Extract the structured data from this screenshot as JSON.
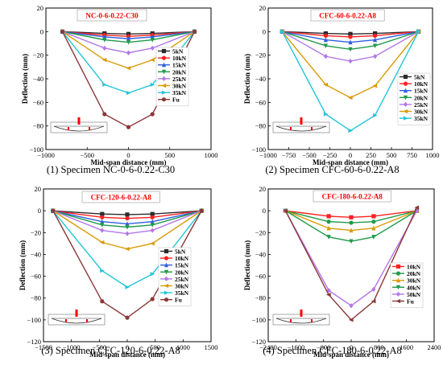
{
  "colors": {
    "5kN": "#2b2b2b",
    "10kN": "#ff2020",
    "15kN": "#2f5fe0",
    "20kN": "#1f9a4a",
    "25kN": "#b277e8",
    "30kN": "#d99a06",
    "35kN": "#22c6d8",
    "Fu": "#8b3838",
    "40kN": "#1f9a4a",
    "50kN": "#b277e8",
    "title_box": "#ff0000",
    "sketch_mark": "#ff0000"
  },
  "chart_data": [
    {
      "type": "line",
      "title": "NC-0-6-0.22-C30",
      "caption": "(1) Specimen NC-0-6-0.22-C30",
      "xlabel": "Mid-span distance (mm)",
      "ylabel": "Deflection (mm)",
      "xlim": [
        -1000,
        1000
      ],
      "ylim": [
        -100,
        20
      ],
      "xticks": [
        -1000,
        -500,
        0,
        500,
        1000
      ],
      "yticks": [
        -100,
        -80,
        -60,
        -40,
        -20,
        0,
        20
      ],
      "x": [
        -800,
        -290,
        0,
        290,
        800
      ],
      "legend_position": "right",
      "series": [
        {
          "name": "5kN",
          "values": [
            0,
            -1.5,
            -2,
            -1.5,
            0
          ]
        },
        {
          "name": "10kN",
          "values": [
            0,
            -3,
            -4,
            -3,
            0
          ]
        },
        {
          "name": "15kN",
          "values": [
            0,
            -4.5,
            -6,
            -4.5,
            0
          ]
        },
        {
          "name": "20kN",
          "values": [
            0,
            -7,
            -9,
            -7,
            0
          ]
        },
        {
          "name": "25kN",
          "values": [
            0,
            -14,
            -18,
            -14,
            0
          ]
        },
        {
          "name": "30kN",
          "values": [
            0,
            -24,
            -31,
            -24,
            0
          ]
        },
        {
          "name": "35kN",
          "values": [
            0,
            -45,
            -52,
            -45,
            0
          ]
        },
        {
          "name": "Fu",
          "values": [
            0,
            -70,
            -81,
            -70,
            0
          ]
        }
      ]
    },
    {
      "type": "line",
      "title": "CFC-60-6-0.22-A8",
      "caption": "(2) Specimen CFC-60-6-0.22-A8",
      "xlabel": "Mid-span distance (mm)",
      "ylabel": "Deflection (mm)",
      "xlim": [
        -1000,
        1000
      ],
      "ylim": [
        -100,
        20
      ],
      "xticks": [
        -1000,
        -750,
        -500,
        -250,
        0,
        250,
        500,
        750,
        1000
      ],
      "yticks": [
        -100,
        -80,
        -60,
        -40,
        -20,
        0,
        20
      ],
      "x": [
        -830,
        -300,
        0,
        300,
        830
      ],
      "legend_position": "right",
      "series": [
        {
          "name": "5kN",
          "values": [
            0,
            -1.5,
            -2,
            -1.5,
            0
          ]
        },
        {
          "name": "10kN",
          "values": [
            0,
            -3.5,
            -4.5,
            -3.5,
            0
          ]
        },
        {
          "name": "15kN",
          "values": [
            0,
            -7,
            -9,
            -7,
            0
          ]
        },
        {
          "name": "20kN",
          "values": [
            0,
            -12,
            -15,
            -12,
            0
          ]
        },
        {
          "name": "25kN",
          "values": [
            0,
            -21,
            -25,
            -21,
            0
          ]
        },
        {
          "name": "30kN",
          "values": [
            0,
            -45,
            -56,
            -46,
            0
          ]
        },
        {
          "name": "35kN",
          "values": [
            0,
            -70,
            -84,
            -71,
            0
          ]
        }
      ]
    },
    {
      "type": "line",
      "title": "CFC-120-6-0.22-A8",
      "caption": "(3) Specimen CFC-120-6-0.22-A8",
      "xlabel": "Mid-span distance (mm)",
      "ylabel": "Deflection (mm)",
      "xlim": [
        -1500,
        1500
      ],
      "ylim": [
        -120,
        20
      ],
      "xticks": [
        -1500,
        -1000,
        -500,
        0,
        500,
        1000,
        1500
      ],
      "yticks": [
        -120,
        -100,
        -80,
        -60,
        -40,
        -20,
        0,
        20
      ],
      "x": [
        -1330,
        -450,
        0,
        450,
        1330
      ],
      "legend_position": "right",
      "series": [
        {
          "name": "5kN",
          "values": [
            0,
            -3,
            -3.5,
            -3,
            0
          ]
        },
        {
          "name": "10kN",
          "values": [
            0,
            -6,
            -7,
            -6,
            0
          ]
        },
        {
          "name": "15kN",
          "values": [
            0,
            -10,
            -12,
            -10,
            0
          ]
        },
        {
          "name": "20kN",
          "values": [
            0,
            -13,
            -15,
            -13,
            0
          ]
        },
        {
          "name": "25kN",
          "values": [
            0,
            -18,
            -21,
            -18,
            0
          ]
        },
        {
          "name": "30kN",
          "values": [
            0,
            -29,
            -35,
            -30,
            0
          ]
        },
        {
          "name": "35kN",
          "values": [
            0,
            -55,
            -70,
            -58,
            0
          ]
        },
        {
          "name": "Fu",
          "values": [
            0,
            -83,
            -98,
            -81,
            0
          ]
        }
      ]
    },
    {
      "type": "line",
      "title": "CFC-180-6-0.22-A8",
      "caption": "(4) Specimen CFC-180-6-0.22-A8",
      "xlabel": "Mid-span distance (mm)",
      "ylabel": "Deflection (mm)",
      "xlim": [
        -2400,
        2400
      ],
      "ylim": [
        -120,
        20
      ],
      "xticks": [
        -2400,
        -1600,
        -800,
        0,
        800,
        1600,
        2400
      ],
      "yticks": [
        -120,
        -100,
        -80,
        -60,
        -40,
        -20,
        0,
        20
      ],
      "x": [
        -1900,
        -650,
        0,
        650,
        1900
      ],
      "legend_position": "right",
      "series": [
        {
          "name": "10kN",
          "values": [
            0,
            -5,
            -6,
            -5,
            0
          ]
        },
        {
          "name": "20kN",
          "values": [
            0,
            -10,
            -11,
            -10,
            0
          ]
        },
        {
          "name": "30kN",
          "values": [
            0,
            -16,
            -18,
            -16,
            0
          ]
        },
        {
          "name": "40kN",
          "values": [
            0,
            -24,
            -28,
            -24,
            0
          ]
        },
        {
          "name": "50kN",
          "values": [
            0,
            -73,
            -87,
            -72,
            0
          ]
        },
        {
          "name": "Fu",
          "values": [
            0,
            -77,
            -100,
            -83,
            3
          ]
        }
      ]
    }
  ]
}
